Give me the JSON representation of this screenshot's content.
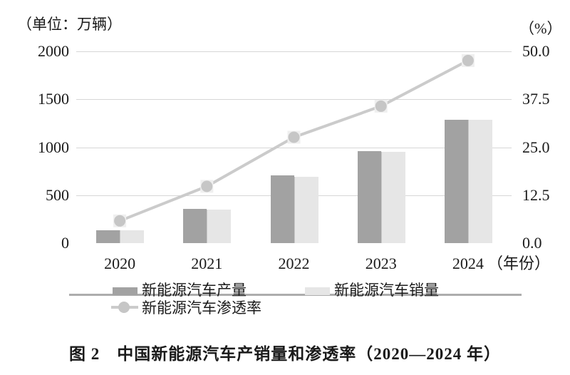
{
  "chart_data": {
    "type": "bar",
    "subtype": "grouped-bars-with-line-overlay",
    "title": "图 2　中国新能源汽车产销量和渗透率（2020—2024 年）",
    "categories": [
      "2020",
      "2021",
      "2022",
      "2023",
      "2024"
    ],
    "series": [
      {
        "name": "新能源汽车产量",
        "type": "bar",
        "axis": "left",
        "color": "#a2a2a2",
        "values": [
          136.6,
          354.5,
          705.8,
          958.7,
          1288.8
        ]
      },
      {
        "name": "新能源汽车销量",
        "type": "bar",
        "axis": "left",
        "color": "#e6e6e6",
        "values": [
          136.7,
          352.1,
          688.7,
          949.5,
          1286.6
        ]
      },
      {
        "name": "新能源汽车渗透率",
        "type": "line",
        "axis": "right",
        "color": "#cbcbcb",
        "marker_color": "#c6c6c6",
        "values": [
          5.8,
          14.8,
          27.6,
          35.7,
          47.6
        ]
      }
    ],
    "left_axis": {
      "unit_label": "（单位：万辆）",
      "ticks": [
        "2000",
        "1500",
        "1000",
        "500",
        "0"
      ],
      "min": 0,
      "max": 2000
    },
    "right_axis": {
      "unit_label": "（%）",
      "ticks": [
        "50.0",
        "37.5",
        "25.0",
        "12.5",
        "0.0"
      ],
      "min": 0,
      "max": 50
    },
    "xlabel_suffix": "（年份）",
    "grid": true,
    "legend_position": "bottom",
    "colors": {
      "gridline": "#d6d6d6",
      "axis_line": "#adadad",
      "text": "#1a1a1a",
      "marker_halo": "#efefef"
    }
  }
}
